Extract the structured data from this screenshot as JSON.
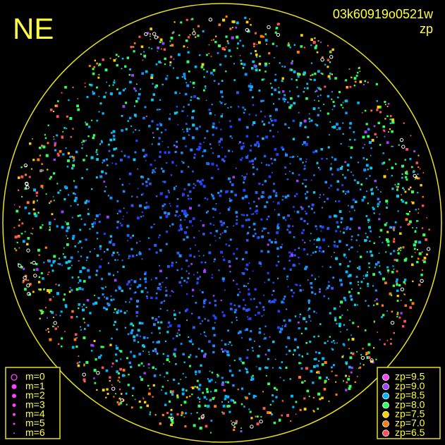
{
  "corner_label": "NE",
  "header": {
    "title": "03k60919o0521w",
    "subtitle": "zp"
  },
  "magnitude_legend": {
    "items": [
      {
        "label": "m=0",
        "hollow": true
      },
      {
        "label": "m=1"
      },
      {
        "label": "m=2"
      },
      {
        "label": "m=3"
      },
      {
        "label": "m=4"
      },
      {
        "label": "m=5"
      },
      {
        "label": "m=6"
      }
    ]
  },
  "zp_legend": {
    "items": [
      {
        "label": "zp=9.5",
        "color": "#ff40ff"
      },
      {
        "label": "zp=9.0",
        "color": "#a040ff"
      },
      {
        "label": "zp=8.5",
        "color": "#00b8ff"
      },
      {
        "label": "zp=8.0",
        "color": "#30ff60"
      },
      {
        "label": "zp=7.5",
        "color": "#ffd000"
      },
      {
        "label": "zp=7.0",
        "color": "#ff7a10"
      },
      {
        "label": "zp=6.5",
        "color": "#ff5060"
      }
    ]
  }
}
